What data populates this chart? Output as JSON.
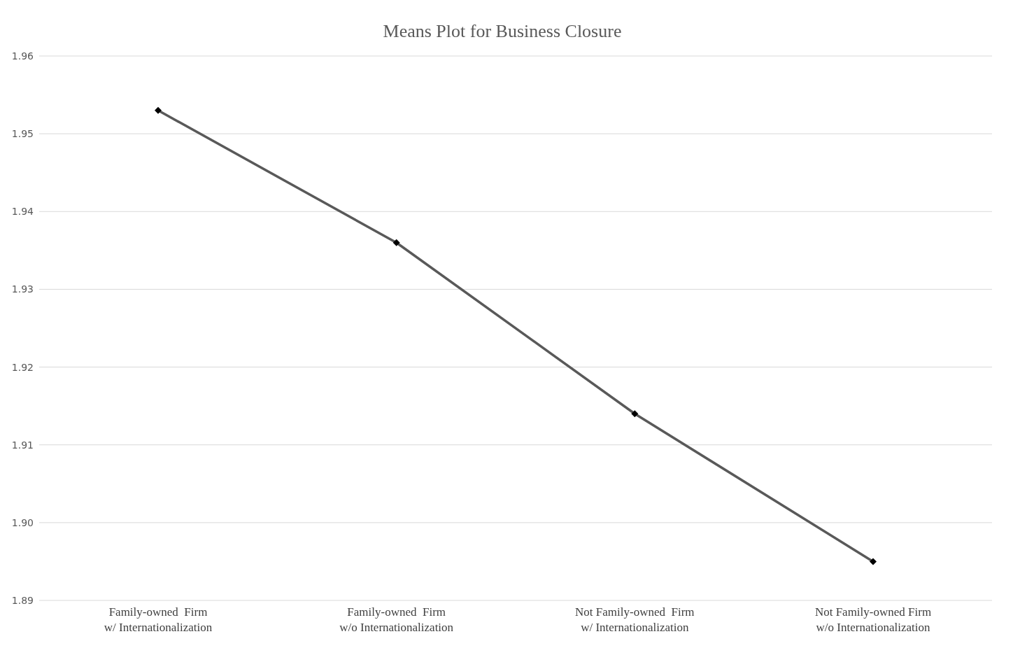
{
  "chart_data": {
    "type": "line",
    "title": "Means Plot for Business Closure",
    "categories": [
      "Family-owned  Firm\nw/ Internationalization",
      "Family-owned  Firm\nw/o Internationalization",
      "Not Family-owned  Firm\nw/ Internationalization",
      "Not Family-owned Firm\nw/o Internationalization"
    ],
    "series": [
      {
        "color": "#595959",
        "values": [
          1.953,
          1.936,
          1.914,
          1.895
        ]
      }
    ],
    "ylim": [
      1.89,
      1.96
    ],
    "yticks": [
      {
        "value": 1.89,
        "label": "1.89"
      },
      {
        "value": 1.9,
        "label": "1.90"
      },
      {
        "value": 1.91,
        "label": "1.91"
      },
      {
        "value": 1.92,
        "label": "1.92"
      },
      {
        "value": 1.93,
        "label": "1.93"
      },
      {
        "value": 1.94,
        "label": "1.94"
      },
      {
        "value": 1.95,
        "label": "1.95"
      },
      {
        "value": 1.96,
        "label": "1.96"
      }
    ],
    "grid": "y",
    "legend": false,
    "marker": "diamond",
    "line_style": "solid"
  }
}
